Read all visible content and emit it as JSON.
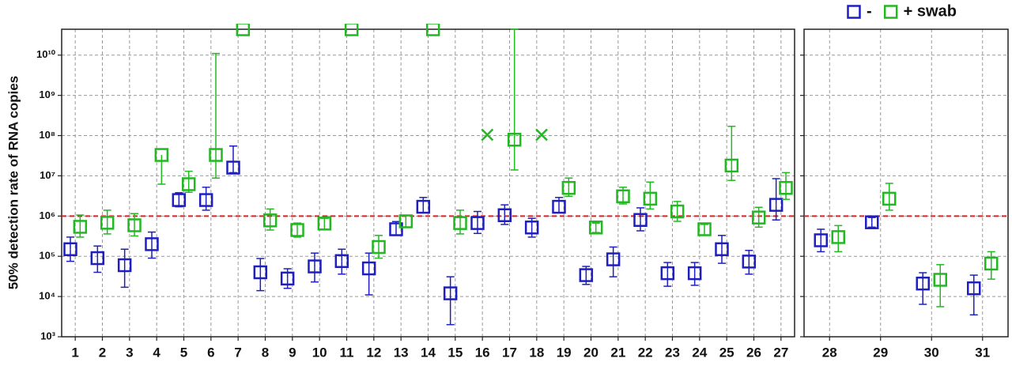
{
  "chart_data": [
    {
      "type": "scatter",
      "y_label": "50% detection rate of RNA copies",
      "log_scale": true,
      "grid": true,
      "categories": [
        "1",
        "2",
        "3",
        "4",
        "5",
        "6",
        "7",
        "8",
        "9",
        "10",
        "11",
        "12",
        "13",
        "14",
        "15",
        "16",
        "17",
        "18",
        "19",
        "20",
        "21",
        "22",
        "23",
        "24",
        "25",
        "26",
        "27"
      ],
      "ylim": [
        1000,
        44000000000
      ],
      "yticks": [
        {
          "value": 1000,
          "label": "10³"
        },
        {
          "value": 10000,
          "label": "10⁴"
        },
        {
          "value": 100000,
          "label": "10⁵"
        },
        {
          "value": 1000000,
          "label": "10⁶"
        },
        {
          "value": 10000000,
          "label": "10⁷"
        },
        {
          "value": 100000000,
          "label": "10⁸"
        },
        {
          "value": 1000000000,
          "label": "10⁹"
        },
        {
          "value": 10000000000,
          "label": "10¹⁰"
        }
      ],
      "reference_line": 1000000,
      "reference_color": "#e02020",
      "series": [
        {
          "name": "-",
          "color": "#1f1fc0",
          "marker": "square",
          "values": [
            150000,
            90000,
            60000,
            200000,
            2500000,
            2500000,
            16000000,
            40000,
            28000,
            56000,
            76000,
            50000,
            470000,
            1700000,
            12000,
            670000,
            1050000,
            520000,
            1700000,
            34000,
            84000,
            800000,
            38000,
            38000,
            150000,
            74000,
            1900000
          ],
          "low": [
            75000,
            40000,
            17000,
            90000,
            1700000,
            1400000,
            12000000,
            14000,
            16000,
            23000,
            36000,
            11000,
            330000,
            1200000,
            2000,
            370000,
            620000,
            300000,
            1200000,
            20000,
            31000,
            430000,
            18000,
            19000,
            67000,
            36000,
            800000
          ],
          "high": [
            300000,
            180000,
            150000,
            400000,
            3800000,
            5200000,
            55000000,
            88000,
            49000,
            120000,
            150000,
            120000,
            730000,
            2900000,
            31000,
            1300000,
            1900000,
            880000,
            2900000,
            56000,
            170000,
            1600000,
            70000,
            70000,
            330000,
            140000,
            8500000
          ]
        },
        {
          "name": "+ swab",
          "color": "#22b822",
          "marker": "square",
          "markers": [
            "square",
            "square",
            "square",
            "square",
            "square",
            "square",
            "square",
            "square",
            "square",
            "square",
            "square",
            "square",
            "square",
            "square",
            "square",
            "x",
            "square",
            "x",
            "square",
            "square",
            "square",
            "square",
            "square",
            "square",
            "square",
            "square",
            "square"
          ],
          "values": [
            540000,
            680000,
            590000,
            33000000,
            6200000,
            33000000,
            44000000000,
            780000,
            450000,
            650000,
            44000000000,
            170000,
            740000,
            44000000000,
            670000,
            105000000,
            79000000,
            105000000,
            5000000,
            520000,
            3100000,
            2700000,
            1300000,
            470000,
            18000000,
            920000,
            5000000
          ],
          "low": [
            300000,
            360000,
            320000,
            6200000,
            3900000,
            8800000,
            null,
            450000,
            300000,
            470000,
            null,
            90000,
            520000,
            null,
            360000,
            null,
            14000000,
            null,
            3100000,
            390000,
            2000000,
            1500000,
            740000,
            340000,
            7700000,
            530000,
            2600000
          ],
          "high": [
            1060000,
            1400000,
            1150000,
            null,
            13000000,
            11000000000,
            null,
            1500000,
            670000,
            880000,
            null,
            330000,
            1050000,
            null,
            1400000,
            null,
            44000000000,
            null,
            8800000,
            670000,
            5200000,
            7000000,
            2300000,
            620000,
            170000000,
            1650000,
            12000000
          ]
        }
      ]
    },
    {
      "type": "scatter",
      "log_scale": true,
      "grid": true,
      "legend": "top-right",
      "categories": [
        "28",
        "29",
        "30",
        "31"
      ],
      "ylim": [
        1000,
        44000000000
      ],
      "yticks": [
        1000,
        10000,
        100000,
        1000000,
        10000000,
        100000000,
        1000000000,
        10000000000
      ],
      "reference_line": 1000000,
      "reference_color": "#e02020",
      "series": [
        {
          "name": "-",
          "color": "#1f1fc0",
          "marker": "square",
          "values": [
            250000,
            700000,
            21000,
            16000
          ],
          "low": [
            130000,
            530000,
            6400,
            3500
          ],
          "high": [
            470000,
            920000,
            39000,
            34000
          ]
        },
        {
          "name": "+ swab",
          "color": "#22b822",
          "marker": "square",
          "values": [
            300000,
            2700000,
            26000,
            66000
          ],
          "low": [
            130000,
            1400000,
            5600,
            27000
          ],
          "high": [
            580000,
            6500000,
            62000,
            130000
          ]
        }
      ]
    }
  ]
}
